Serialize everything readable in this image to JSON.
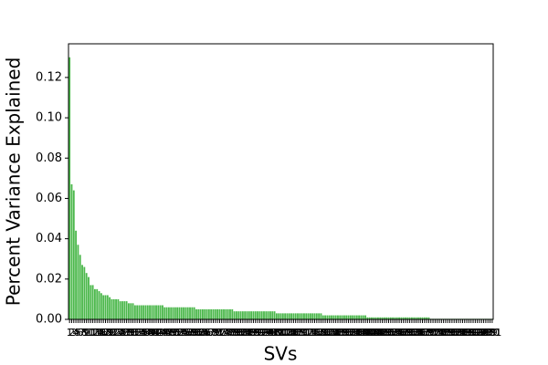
{
  "chart_data": {
    "type": "bar",
    "xlabel": "SVs",
    "ylabel": "Percent Variance Explained",
    "color": "#4cb84c",
    "ylim": [
      0,
      0.1367
    ],
    "yticks": [
      0.0,
      0.02,
      0.04,
      0.06,
      0.08,
      0.1,
      0.12
    ],
    "categories": [
      1,
      2,
      3,
      4,
      5,
      6,
      7,
      8,
      9,
      10,
      11,
      12,
      13,
      14,
      15,
      16,
      17,
      18,
      19,
      20,
      21,
      22,
      23,
      24,
      25,
      26,
      27,
      28,
      29,
      30,
      31,
      32,
      33,
      34,
      35,
      36,
      37,
      38,
      39,
      40,
      41,
      42,
      43,
      44,
      45,
      46,
      47,
      48,
      49,
      50,
      51,
      52,
      53,
      54,
      55,
      56,
      57,
      58,
      59,
      60,
      61,
      62,
      63,
      64,
      65,
      66,
      67,
      68,
      69,
      70,
      71,
      72,
      73,
      74,
      75,
      76,
      77,
      78,
      79,
      80,
      81,
      82,
      83,
      84,
      85,
      86,
      87,
      88,
      89,
      90,
      91,
      92,
      93,
      94,
      95,
      96,
      97,
      98,
      99,
      100,
      101,
      102,
      103,
      104,
      105,
      106,
      107,
      108,
      109,
      110,
      111,
      112,
      113,
      114,
      115,
      116,
      117,
      118,
      119,
      120,
      121,
      122,
      123,
      124,
      125,
      126,
      127,
      128,
      129,
      130,
      131,
      132,
      133,
      134,
      135,
      136,
      137,
      138,
      139,
      140,
      141,
      142,
      143,
      144,
      145,
      146,
      147,
      148,
      149,
      150,
      151,
      152,
      153,
      154,
      155,
      156,
      157,
      158,
      159,
      160,
      161,
      162,
      163,
      164,
      165,
      166,
      167,
      168,
      169,
      170,
      171,
      172,
      173,
      174,
      175,
      176,
      177,
      178,
      179,
      180,
      181,
      182,
      183,
      184,
      185,
      186,
      187,
      188,
      189,
      190,
      191,
      192,
      193,
      194,
      195,
      196,
      197,
      198,
      199,
      200,
      201
    ],
    "values": [
      0.13,
      0.067,
      0.064,
      0.044,
      0.037,
      0.032,
      0.027,
      0.026,
      0.023,
      0.021,
      0.017,
      0.017,
      0.015,
      0.015,
      0.014,
      0.013,
      0.012,
      0.012,
      0.012,
      0.011,
      0.01,
      0.01,
      0.01,
      0.01,
      0.009,
      0.009,
      0.009,
      0.009,
      0.008,
      0.008,
      0.008,
      0.007,
      0.007,
      0.007,
      0.007,
      0.007,
      0.007,
      0.007,
      0.007,
      0.007,
      0.007,
      0.007,
      0.007,
      0.007,
      0.007,
      0.006,
      0.006,
      0.006,
      0.006,
      0.006,
      0.006,
      0.006,
      0.006,
      0.006,
      0.006,
      0.006,
      0.006,
      0.006,
      0.006,
      0.006,
      0.005,
      0.005,
      0.005,
      0.005,
      0.005,
      0.005,
      0.005,
      0.005,
      0.005,
      0.005,
      0.005,
      0.005,
      0.005,
      0.005,
      0.005,
      0.005,
      0.005,
      0.005,
      0.004,
      0.004,
      0.004,
      0.004,
      0.004,
      0.004,
      0.004,
      0.004,
      0.004,
      0.004,
      0.004,
      0.004,
      0.004,
      0.004,
      0.004,
      0.004,
      0.004,
      0.004,
      0.004,
      0.004,
      0.003,
      0.003,
      0.003,
      0.003,
      0.003,
      0.003,
      0.003,
      0.003,
      0.003,
      0.003,
      0.003,
      0.003,
      0.003,
      0.003,
      0.003,
      0.003,
      0.003,
      0.003,
      0.003,
      0.003,
      0.003,
      0.003,
      0.002,
      0.002,
      0.002,
      0.002,
      0.002,
      0.002,
      0.002,
      0.002,
      0.002,
      0.002,
      0.002,
      0.002,
      0.002,
      0.002,
      0.002,
      0.002,
      0.002,
      0.002,
      0.002,
      0.002,
      0.002,
      0.001,
      0.001,
      0.001,
      0.001,
      0.001,
      0.001,
      0.001,
      0.001,
      0.001,
      0.001,
      0.001,
      0.001,
      0.001,
      0.001,
      0.001,
      0.001,
      0.001,
      0.001,
      0.001,
      0.001,
      0.001,
      0.001,
      0.001,
      0.001,
      0.001,
      0.001,
      0.001,
      0.001,
      0.001,
      0.001,
      0.0003,
      0.0003,
      0.0003,
      0.0003,
      0.0003,
      0.0003,
      0.0003,
      0.0003,
      0.0003,
      0.0003,
      0.0003,
      0.0003,
      0.0003,
      0.0003,
      0.0003,
      0.0003,
      0.0003,
      0.0003,
      0.0003,
      0.0003,
      0.0003,
      0.0003,
      0.0003,
      0.0003,
      0.0003,
      0.0003,
      0.0003,
      0.0003,
      0.0003,
      0.0003
    ]
  }
}
